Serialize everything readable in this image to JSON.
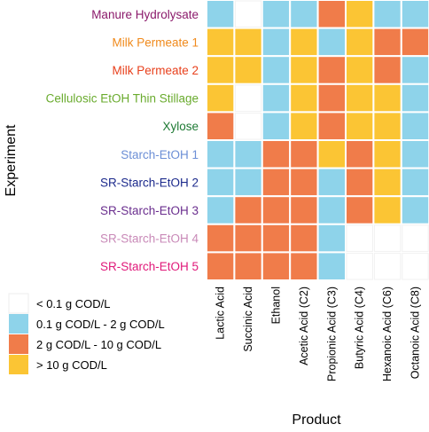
{
  "chart_data": {
    "type": "heatmap",
    "xlabel": "Product",
    "ylabel": "Experiment",
    "x_categories": [
      "Lactic Acid",
      "Succinic Acid",
      "Ethanol",
      "Acetic Acid (C2)",
      "Propionic Acid (C3)",
      "Butyric Acid (C4)",
      "Hexanoic Acid (C6)",
      "Octanoic Acid (C8)"
    ],
    "y_categories": [
      {
        "label": "Manure Hydrolysate",
        "color": "#8b1a6b"
      },
      {
        "label": "Milk Permeate 1",
        "color": "#f08a1c"
      },
      {
        "label": "Milk Permeate 2",
        "color": "#e8401c"
      },
      {
        "label": "Cellulosic EtOH Thin Stillage",
        "color": "#6aab2e"
      },
      {
        "label": "Xylose",
        "color": "#1e7a34"
      },
      {
        "label": "Starch-EtOH 1",
        "color": "#6c8fd6"
      },
      {
        "label": "SR-Starch-EtOH 2",
        "color": "#1c2a8c"
      },
      {
        "label": "SR-Starch-EtOH 3",
        "color": "#6a2e8e"
      },
      {
        "label": "SR-Starch-EtOH 4",
        "color": "#c98ab8"
      },
      {
        "label": "SR-Starch-EtOH 5",
        "color": "#e0197a"
      }
    ],
    "levels": [
      {
        "label": "< 0.1 g COD/L",
        "color": "#ffffff"
      },
      {
        "label": "0.1 g COD/L - 2 g COD/L",
        "color": "#8ed3ea"
      },
      {
        "label": "2 g COD/L - 10 g COD/L",
        "color": "#f07c4a"
      },
      {
        "label": "> 10 g COD/L",
        "color": "#fbc534"
      }
    ],
    "values": [
      [
        1,
        0,
        1,
        1,
        2,
        3,
        1,
        1
      ],
      [
        3,
        3,
        1,
        3,
        1,
        3,
        2,
        2
      ],
      [
        3,
        3,
        1,
        3,
        2,
        3,
        2,
        1
      ],
      [
        3,
        0,
        1,
        3,
        2,
        3,
        3,
        1
      ],
      [
        2,
        0,
        1,
        3,
        2,
        3,
        3,
        1
      ],
      [
        1,
        1,
        2,
        2,
        3,
        2,
        3,
        1
      ],
      [
        1,
        1,
        2,
        2,
        1,
        2,
        3,
        1
      ],
      [
        1,
        2,
        2,
        2,
        1,
        2,
        3,
        1
      ],
      [
        2,
        2,
        2,
        2,
        1,
        0,
        0,
        0
      ],
      [
        2,
        2,
        2,
        2,
        1,
        0,
        0,
        0
      ]
    ]
  }
}
